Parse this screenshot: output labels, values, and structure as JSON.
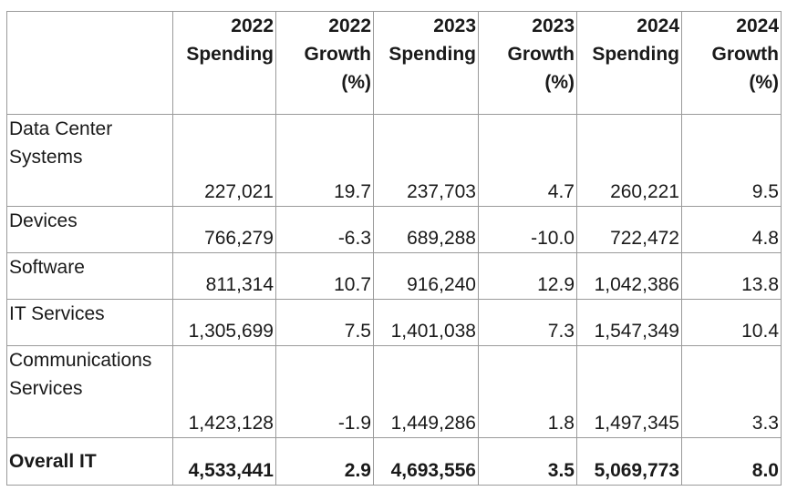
{
  "table": {
    "headers": [
      "2022\nSpending",
      "2022\nGrowth\n(%)",
      "2023\nSpending",
      "2023\nGrowth\n(%)",
      "2024\nSpending",
      "2024\nGrowth\n(%)"
    ],
    "rows": [
      {
        "label": "Data Center\nSystems",
        "cells": [
          "227,021",
          "19.7",
          "237,703",
          "4.7",
          "260,221",
          "9.5"
        ]
      },
      {
        "label": "Devices",
        "cells": [
          "766,279",
          "-6.3",
          "689,288",
          "-10.0",
          "722,472",
          "4.8"
        ]
      },
      {
        "label": "Software",
        "cells": [
          "811,314",
          "10.7",
          "916,240",
          "12.9",
          "1,042,386",
          "13.8"
        ]
      },
      {
        "label": "IT Services",
        "cells": [
          "1,305,699",
          "7.5",
          "1,401,038",
          "7.3",
          "1,547,349",
          "10.4"
        ]
      },
      {
        "label": "Communications\nServices",
        "cells": [
          "1,423,128",
          "-1.9",
          "1,449,286",
          "1.8",
          "1,497,345",
          "3.3"
        ]
      }
    ],
    "total": {
      "label": "Overall IT",
      "cells": [
        "4,533,441",
        "2.9",
        "4,693,556",
        "3.5",
        "5,069,773",
        "8.0"
      ]
    }
  }
}
